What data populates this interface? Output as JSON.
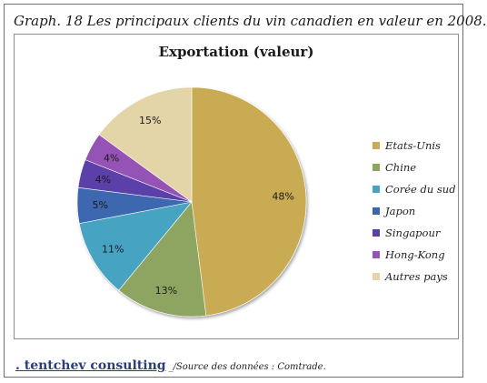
{
  "caption": "Graph. 18 Les principaux clients du vin canadien en valeur en 2008.",
  "footer": {
    "brand": ". tentchev consulting",
    "source": "_/Source des données : Comtrade."
  },
  "chart_data": {
    "type": "pie",
    "title": "Exportation (valeur)",
    "legend": "right",
    "slices": [
      {
        "label": "Etats-Unis",
        "value": 48,
        "display": "48%",
        "color": "#c9ab52"
      },
      {
        "label": "Chine",
        "value": 13,
        "display": "13%",
        "color": "#8da561"
      },
      {
        "label": "Corée du sud",
        "value": 11,
        "display": "11%",
        "color": "#47a3c2"
      },
      {
        "label": "Japon",
        "value": 5,
        "display": "5%",
        "color": "#3c67b0"
      },
      {
        "label": "Singapour",
        "value": 4,
        "display": "4%",
        "color": "#5a40a8"
      },
      {
        "label": "Hong-Kong",
        "value": 4,
        "display": "4%",
        "color": "#9553b5"
      },
      {
        "label": "Autres pays",
        "value": 15,
        "display": "15%",
        "color": "#e3d5a8"
      }
    ]
  }
}
